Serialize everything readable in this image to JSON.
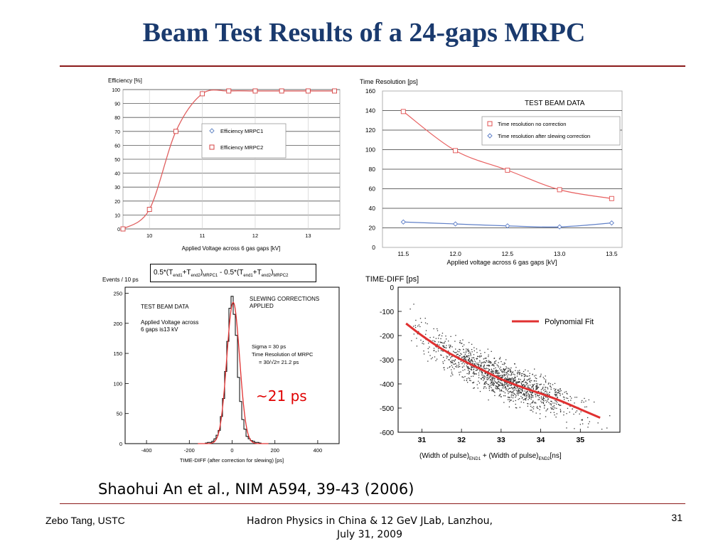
{
  "slide": {
    "title": "Beam Test Results of a 24-gaps MRPC",
    "citation": "Shaohui An et al., NIM A594, 39-43 (2006)",
    "footer_left": "Zebo Tang, USTC",
    "footer_center_line1": "Hadron Physics in China & 12 GeV JLab, Lanzhou,",
    "footer_center_line2": "July 31, 2009",
    "page_number": "31",
    "ps_annotation": "~21 ps",
    "accent_color": "#1a3a6e",
    "rule_color": "#8b1a1a",
    "annotation_color": "#e00000"
  },
  "chart_data": [
    {
      "id": "efficiency",
      "type": "line",
      "ylabel": "Efficiency [%]",
      "xlabel": "Applied Voltage across 6 gas gaps [kV]",
      "xlim": [
        9.5,
        13.6
      ],
      "ylim": [
        0,
        100
      ],
      "xticks": [
        10,
        11,
        12,
        13
      ],
      "yticks": [
        0,
        10,
        20,
        30,
        40,
        50,
        60,
        70,
        80,
        90,
        100
      ],
      "grid": "horizontal",
      "legend_position": "right",
      "series": [
        {
          "name": "Efficiency MRPC1",
          "marker": "diamond",
          "color": "#6a8cc8",
          "x": [],
          "y": []
        },
        {
          "name": "Efficiency MRPC2",
          "marker": "square",
          "color": "#d64040",
          "x": [
            9.5,
            10.0,
            10.5,
            11.0,
            11.5,
            12.0,
            12.5,
            13.0,
            13.5
          ],
          "y": [
            0,
            14,
            70,
            97,
            99,
            99,
            99,
            99,
            99
          ]
        }
      ]
    },
    {
      "id": "time-resolution",
      "type": "line",
      "ylabel": "Time Resolution [ps]",
      "xlabel": "Applied voltage across 6 gas gaps [kV]",
      "annotation": "TEST BEAM DATA",
      "xlim": [
        11.3,
        13.6
      ],
      "ylim": [
        0,
        160
      ],
      "xticks": [
        11.5,
        12.0,
        12.5,
        13.0,
        13.5
      ],
      "xtick_labels": [
        "11.5",
        "12.0",
        "12.5",
        "13.0",
        "13.5"
      ],
      "yticks": [
        0,
        20,
        40,
        60,
        80,
        100,
        120,
        140,
        160
      ],
      "grid": "horizontal",
      "legend_position": "top-right",
      "series": [
        {
          "name": "Time resolution   no correction",
          "marker": "square",
          "color": "#e05050",
          "x": [
            11.5,
            12.0,
            12.5,
            13.0,
            13.5
          ],
          "y": [
            139,
            99,
            79,
            59,
            50
          ]
        },
        {
          "name": "Time resolution after slewing correction",
          "marker": "diamond",
          "color": "#6080c8",
          "x": [
            11.5,
            12.0,
            12.5,
            13.0,
            13.5
          ],
          "y": [
            26,
            24,
            22,
            21,
            25
          ]
        }
      ]
    },
    {
      "id": "histogram",
      "type": "bar",
      "ylabel": "Events / 10 ps",
      "xlabel": "TIME-DIFF (after correction for slewing) [ps]",
      "xlim": [
        -500,
        500
      ],
      "ylim": [
        0,
        260
      ],
      "xticks": [
        -400,
        -200,
        0,
        200,
        400
      ],
      "yticks": [
        0,
        50,
        100,
        150,
        200,
        250
      ],
      "annotations": [
        "TEST BEAM DATA",
        "Applied Voltage across",
        "6 gaps is13 kV",
        "SLEWING CORRECTIONS",
        "APPLIED",
        "Sigma = 30 ps",
        "Time Resolution of MRPC",
        "= 30/√2= 21.2 ps"
      ],
      "formula": "0.5*(T_end1+T_end2)_MRPC1 - 0.5*(T_end1+T_end2)_MRPC2",
      "formula_parts": [
        "0.5*(T",
        "end1",
        "+T",
        "end2",
        ")",
        "MRPC1",
        " - 0.5*(T",
        "end1",
        "+T",
        "end2",
        ")",
        "MRPC2"
      ],
      "sigma": 30,
      "bin_width": 10,
      "bins_x": [
        -120,
        -110,
        -100,
        -90,
        -80,
        -70,
        -60,
        -50,
        -40,
        -30,
        -20,
        -10,
        0,
        10,
        20,
        30,
        40,
        50,
        60,
        70,
        80,
        90,
        100,
        110,
        120,
        130
      ],
      "bins_y": [
        1,
        2,
        2,
        4,
        8,
        14,
        22,
        45,
        75,
        120,
        170,
        225,
        245,
        215,
        180,
        110,
        70,
        40,
        24,
        12,
        8,
        5,
        4,
        2,
        2,
        1
      ],
      "fit": {
        "type": "gaussian",
        "mean": 5,
        "sigma": 30,
        "amplitude": 235,
        "color": "#e03030"
      }
    },
    {
      "id": "scatter",
      "type": "scatter",
      "ylabel": "TIME-DIFF [ps]",
      "xlabel_parts": [
        "(Width of pulse)",
        "END1",
        " + (Width of pulse)",
        "END2",
        "[ns]"
      ],
      "xlim": [
        30.4,
        36.0
      ],
      "ylim": [
        -600,
        0
      ],
      "xticks": [
        31,
        32,
        33,
        34,
        35
      ],
      "yticks": [
        0,
        -100,
        -200,
        -300,
        -400,
        -500,
        -600
      ],
      "legend": "Polynomial Fit",
      "legend_position": "top-right",
      "fit": {
        "color": "#e03030",
        "x": [
          30.6,
          31.0,
          31.5,
          32.0,
          32.5,
          33.0,
          33.5,
          34.0,
          34.5,
          35.0,
          35.5
        ],
        "y": [
          -150,
          -200,
          -255,
          -300,
          -340,
          -380,
          -412,
          -440,
          -470,
          -505,
          -540
        ]
      }
    }
  ]
}
